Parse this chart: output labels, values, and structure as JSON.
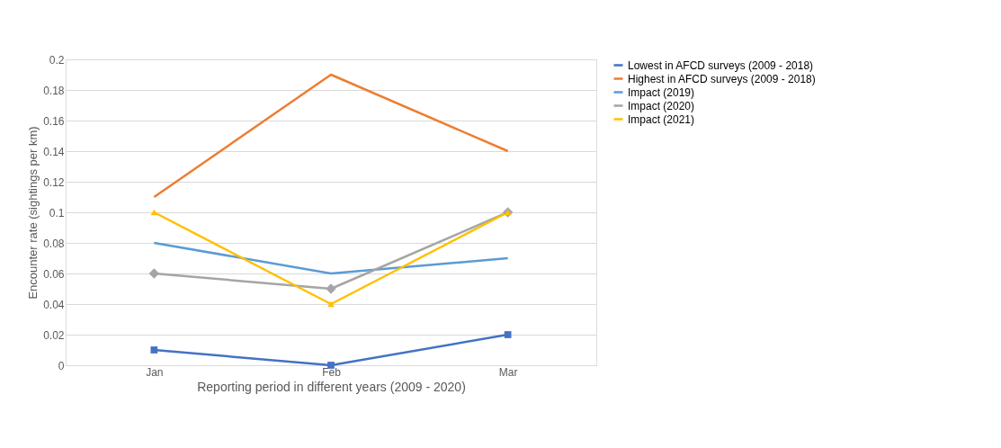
{
  "chart_data": {
    "type": "line",
    "xlabel": "Reporting period in different years (2009 - 2020)",
    "ylabel": "Encounter rate (sightings per km)",
    "categories": [
      "Jan",
      "Feb",
      "Mar"
    ],
    "series": [
      {
        "name": "Lowest in AFCD surveys (2009 - 2018)",
        "color": "#4472c4",
        "marker": "square",
        "values": [
          0.01,
          0,
          0.02
        ]
      },
      {
        "name": "Highest in AFCD surveys (2009 - 2018)",
        "color": "#ed7d31",
        "marker": "none",
        "values": [
          0.11,
          0.19,
          0.14
        ]
      },
      {
        "name": "Impact (2019)",
        "color": "#5b9bd5",
        "marker": "none",
        "values": [
          0.08,
          0.06,
          0.07
        ]
      },
      {
        "name": "Impact (2020)",
        "color": "#a5a5a5",
        "marker": "diamond",
        "values": [
          0.06,
          0.05,
          0.1
        ]
      },
      {
        "name": "Impact (2021)",
        "color": "#ffc000",
        "marker": "triangle",
        "values": [
          0.1,
          0.04,
          0.1
        ]
      }
    ],
    "ylim": [
      0,
      0.2
    ],
    "yticks": [
      0,
      0.02,
      0.04,
      0.06,
      0.08,
      0.1,
      0.12,
      0.14,
      0.16,
      0.18,
      0.2
    ],
    "grid": "y",
    "legend": "right",
    "line_style": "solid"
  }
}
